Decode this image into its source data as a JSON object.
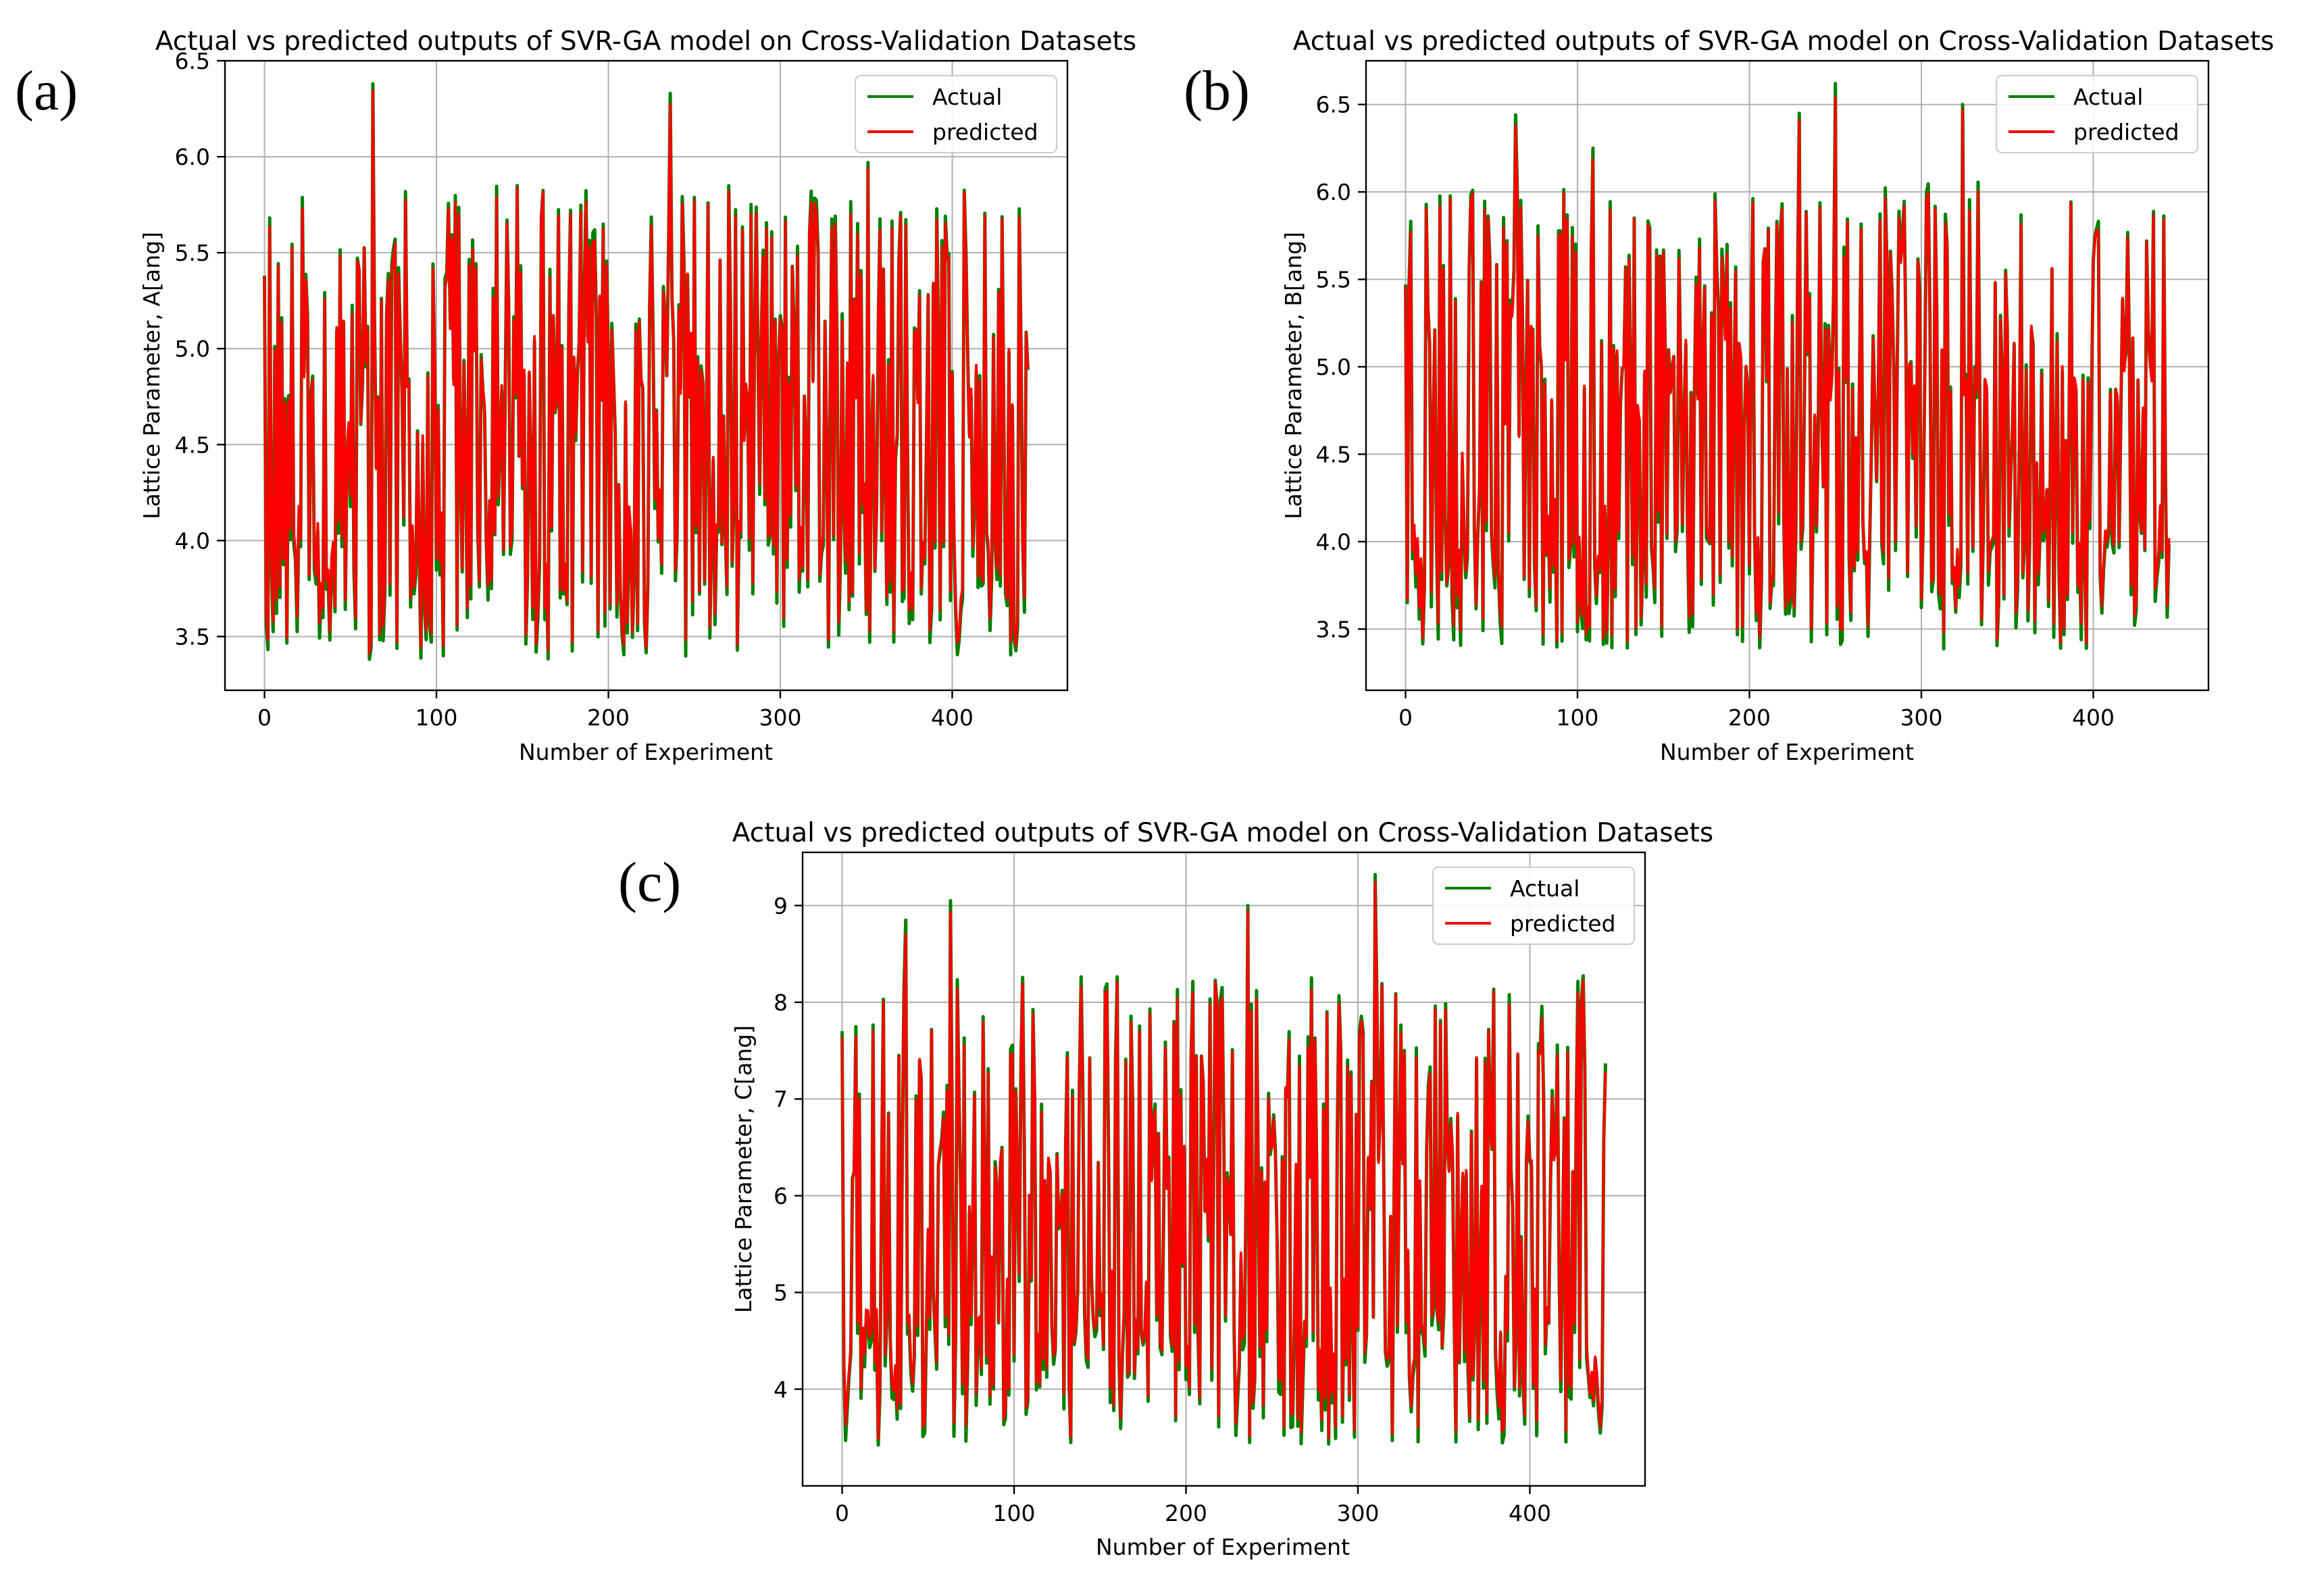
{
  "figure": {
    "background": "#ffffff",
    "colors": {
      "actual": "#008000",
      "predicted": "#ff0000",
      "grid": "#b0b0b0",
      "axis": "#000000"
    }
  },
  "chart_data": [
    {
      "panel_label": "(a)",
      "type": "line",
      "title": "Actual vs predicted outputs of SVR-GA model on Cross-Validation Datasets",
      "xlabel": "Number of Experiment",
      "ylabel": "Lattice Parameter, A[ang]",
      "xlim": [
        -23,
        467
      ],
      "ylim": [
        3.22,
        6.5
      ],
      "xticks": [
        0,
        100,
        200,
        300,
        400
      ],
      "xtick_labels": [
        "0",
        "100",
        "200",
        "300",
        "400"
      ],
      "yticks": [
        3.5,
        4.0,
        4.5,
        5.0,
        5.5,
        6.0,
        6.5
      ],
      "ytick_labels": [
        "3.5",
        "4.0",
        "4.5",
        "5.0",
        "5.5",
        "6.0",
        "6.5"
      ],
      "grid": true,
      "legend_position": "top-right",
      "series": [
        {
          "name": "Actual",
          "color": "#008000"
        },
        {
          "name": "predicted",
          "color": "#ff0000"
        }
      ],
      "generator": {
        "n": 445,
        "seed": 11,
        "low": 3.32,
        "high": 6.38,
        "start": 5.38,
        "spikes": [
          [
            63,
            6.38
          ],
          [
            236,
            6.33
          ],
          [
            147,
            5.85
          ],
          [
            351,
            5.97
          ]
        ]
      }
    },
    {
      "panel_label": "(b)",
      "type": "line",
      "title": "Actual vs predicted outputs of SVR-GA model on Cross-Validation Datasets",
      "xlabel": "Number of Experiment",
      "ylabel": "Lattice Parameter, B[ang]",
      "xlim": [
        -23,
        467
      ],
      "ylim": [
        3.15,
        6.75
      ],
      "xticks": [
        0,
        100,
        200,
        300,
        400
      ],
      "xtick_labels": [
        "0",
        "100",
        "200",
        "300",
        "400"
      ],
      "yticks": [
        3.5,
        4.0,
        4.5,
        5.0,
        5.5,
        6.0,
        6.5
      ],
      "ytick_labels": [
        "3.5",
        "4.0",
        "4.5",
        "5.0",
        "5.5",
        "6.0",
        "6.5"
      ],
      "grid": true,
      "legend_position": "top-right",
      "series": [
        {
          "name": "Actual",
          "color": "#008000"
        },
        {
          "name": "predicted",
          "color": "#ff0000"
        }
      ],
      "generator": {
        "n": 445,
        "seed": 23,
        "low": 3.32,
        "high": 6.62,
        "start": 5.47,
        "spikes": [
          [
            64,
            6.44
          ],
          [
            250,
            6.62
          ],
          [
            324,
            6.5
          ],
          [
            229,
            6.45
          ],
          [
            109,
            6.25
          ]
        ]
      }
    },
    {
      "panel_label": "(c)",
      "type": "line",
      "title": "Actual vs predicted outputs of SVR-GA model on Cross-Validation Datasets",
      "xlabel": "Number of Experiment",
      "ylabel": "Lattice Parameter, C[ang]",
      "xlim": [
        -23,
        467
      ],
      "ylim": [
        3.0,
        9.55
      ],
      "xticks": [
        0,
        100,
        200,
        300,
        400
      ],
      "xtick_labels": [
        "0",
        "100",
        "200",
        "300",
        "400"
      ],
      "yticks": [
        4,
        5,
        6,
        7,
        8,
        9
      ],
      "ytick_labels": [
        "4",
        "5",
        "6",
        "7",
        "8",
        "9"
      ],
      "grid": true,
      "legend_position": "top-right",
      "series": [
        {
          "name": "Actual",
          "color": "#008000"
        },
        {
          "name": "predicted",
          "color": "#ff0000"
        }
      ],
      "generator": {
        "n": 445,
        "seed": 37,
        "low": 3.3,
        "high": 9.32,
        "start": 7.7,
        "spikes": [
          [
            310,
            9.32
          ],
          [
            63,
            9.05
          ],
          [
            236,
            9.0
          ],
          [
            37,
            8.85
          ]
        ]
      }
    }
  ]
}
